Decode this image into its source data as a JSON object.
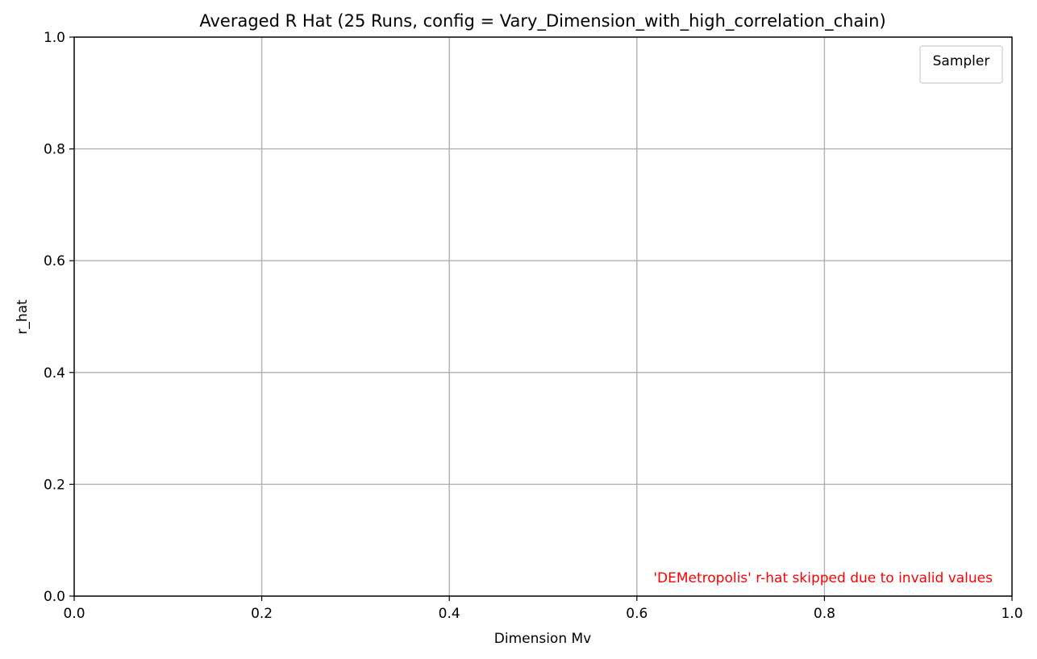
{
  "chart_data": {
    "type": "line",
    "title": "Averaged R Hat (25 Runs, config = Vary_Dimension_with_high_correlation_chain)",
    "xlabel": "Dimension Mv",
    "ylabel": "r_hat",
    "xlim": [
      0.0,
      1.0
    ],
    "ylim": [
      0.0,
      1.0
    ],
    "x_ticks": [
      0.0,
      0.2,
      0.4,
      0.6,
      0.8,
      1.0
    ],
    "y_ticks": [
      0.0,
      0.2,
      0.4,
      0.6,
      0.8,
      1.0
    ],
    "x_tick_labels": [
      "0.0",
      "0.2",
      "0.4",
      "0.6",
      "0.8",
      "1.0"
    ],
    "y_tick_labels": [
      "0.0",
      "0.2",
      "0.4",
      "0.6",
      "0.8",
      "1.0"
    ],
    "grid": true,
    "series": [],
    "legend": {
      "title": "Sampler",
      "placement": "top-right",
      "entries": []
    },
    "annotation": {
      "text": "'DEMetropolis' r-hat skipped due to invalid values",
      "color": "#ff0000",
      "placement": "bottom-right"
    }
  },
  "colors": {
    "grid": "#b0b0b0",
    "axis": "#000000",
    "legend_border": "#cccccc"
  }
}
